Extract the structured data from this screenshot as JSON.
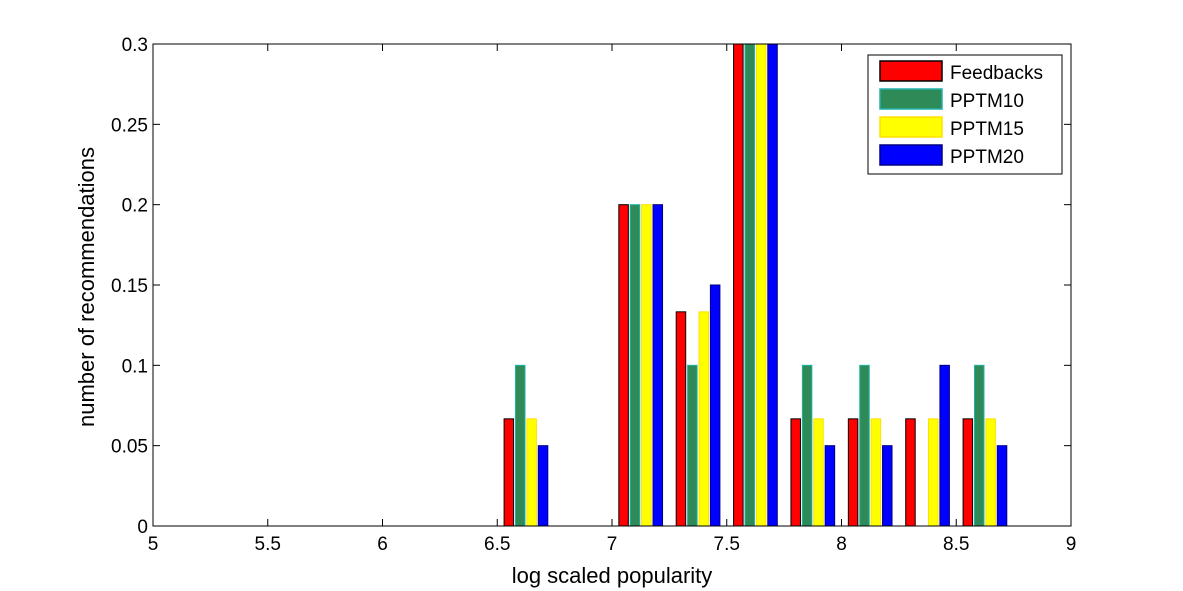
{
  "chart_data": {
    "type": "bar",
    "xlabel": "log scaled popularity",
    "ylabel": "number of recommendations",
    "xlim": [
      5,
      9
    ],
    "ylim": [
      0,
      0.3
    ],
    "xticks": [
      "5",
      "5.5",
      "6",
      "6.5",
      "7",
      "7.5",
      "8",
      "8.5",
      "9"
    ],
    "yticks": [
      "0",
      "0.05",
      "0.1",
      "0.15",
      "0.2",
      "0.25",
      "0.3"
    ],
    "bin_centers": [
      5.125,
      5.375,
      5.625,
      5.875,
      6.125,
      6.375,
      6.625,
      7.125,
      7.375,
      7.625,
      7.875,
      8.125,
      8.375,
      8.625,
      8.875
    ],
    "legend_position": "top-right",
    "grid": false,
    "series": [
      {
        "name": "Feedbacks",
        "color": "#ff0000",
        "edge": "#000000",
        "values": [
          0,
          0,
          0,
          0,
          0,
          0,
          0.0667,
          0.2,
          0.1333,
          0.3,
          0.0667,
          0.0667,
          0.0667,
          0.0667,
          0
        ]
      },
      {
        "name": "PPTM10",
        "color": "#2e8b57",
        "edge": "#20b2aa",
        "values": [
          0,
          0,
          0,
          0,
          0,
          0,
          0.1,
          0.2,
          0.1,
          0.3,
          0.1,
          0.1,
          0,
          0.1,
          0
        ]
      },
      {
        "name": "PPTM15",
        "color": "#ffff00",
        "edge": "#ffe000",
        "values": [
          0,
          0,
          0,
          0,
          0,
          0,
          0.0667,
          0.2,
          0.1333,
          0.3,
          0.0667,
          0.0667,
          0.0667,
          0.0667,
          0
        ]
      },
      {
        "name": "PPTM20",
        "color": "#0000ff",
        "edge": "#000080",
        "values": [
          0,
          0,
          0,
          0,
          0,
          0,
          0.05,
          0.2,
          0.15,
          0.3,
          0.05,
          0.05,
          0.1,
          0.05,
          0
        ]
      }
    ]
  }
}
